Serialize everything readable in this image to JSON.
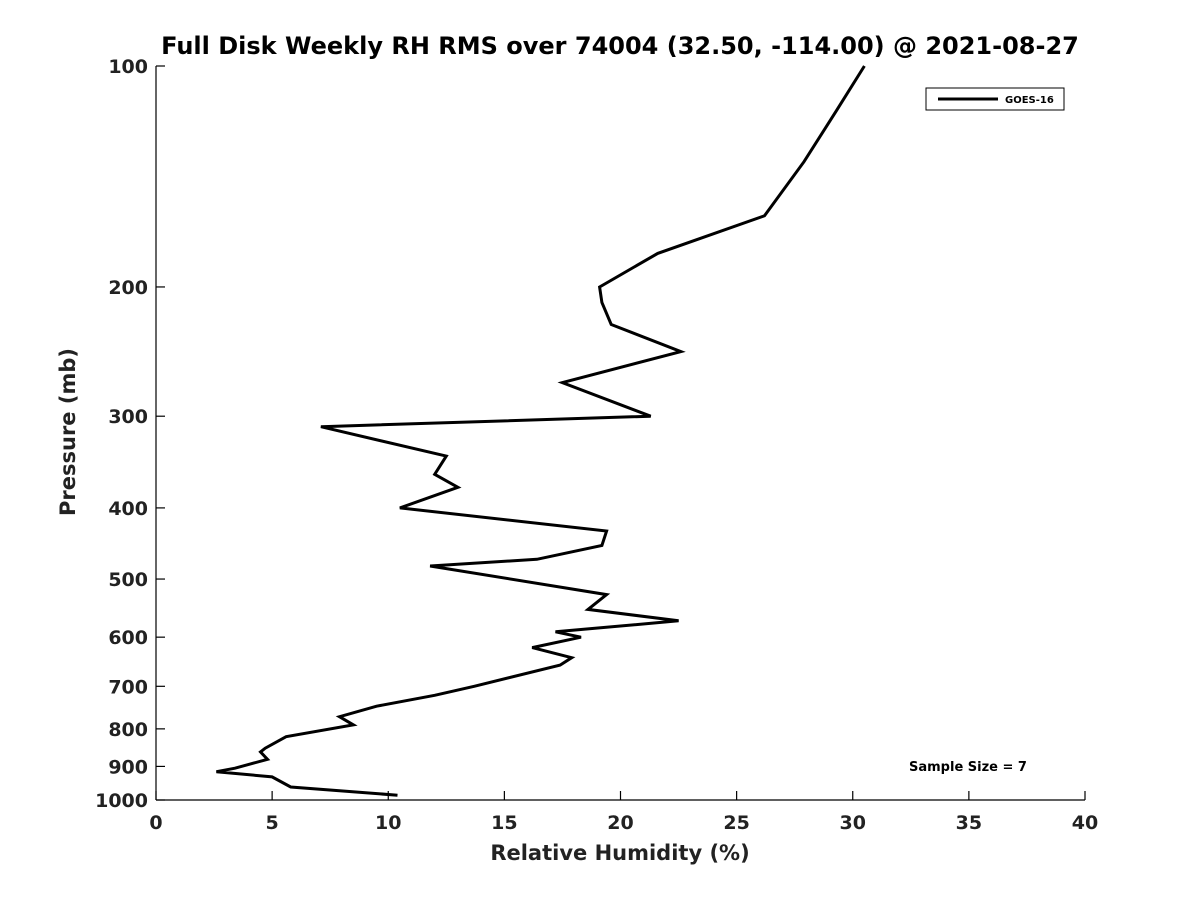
{
  "chart_data": {
    "type": "line",
    "title": "Full Disk Weekly RH RMS over 74004 (32.50, -114.00) @ 2021-08-27",
    "xlabel": "Relative Humidity (%)",
    "ylabel": "Pressure (mb)",
    "xlim": [
      0,
      40
    ],
    "ylim": [
      100,
      1000
    ],
    "y_scale": "log",
    "y_reversed": true,
    "x_ticks": [
      "0",
      "5",
      "10",
      "15",
      "20",
      "25",
      "30",
      "35",
      "40"
    ],
    "y_ticks": [
      "100",
      "200",
      "300",
      "400",
      "500",
      "600",
      "700",
      "800",
      "900",
      "1000"
    ],
    "grid": false,
    "legend_position": "top-right",
    "series": [
      {
        "name": "GOES-16",
        "color": "#000000",
        "points": [
          [
            30.5,
            100
          ],
          [
            29.3,
            115
          ],
          [
            27.9,
            135
          ],
          [
            26.2,
            160
          ],
          [
            21.6,
            180
          ],
          [
            19.1,
            200
          ],
          [
            19.2,
            210
          ],
          [
            19.6,
            225
          ],
          [
            22.6,
            245
          ],
          [
            17.5,
            270
          ],
          [
            21.3,
            300
          ],
          [
            7.1,
            310
          ],
          [
            12.5,
            340
          ],
          [
            12.0,
            360
          ],
          [
            13.0,
            375
          ],
          [
            10.5,
            400
          ],
          [
            19.4,
            430
          ],
          [
            19.2,
            450
          ],
          [
            16.4,
            470
          ],
          [
            11.8,
            480
          ],
          [
            19.4,
            525
          ],
          [
            18.6,
            550
          ],
          [
            22.5,
            570
          ],
          [
            17.2,
            590
          ],
          [
            18.3,
            600
          ],
          [
            16.2,
            620
          ],
          [
            17.9,
            640
          ],
          [
            17.4,
            655
          ],
          [
            13.7,
            700
          ],
          [
            12.0,
            720
          ],
          [
            9.5,
            745
          ],
          [
            7.9,
            770
          ],
          [
            8.5,
            790
          ],
          [
            5.6,
            820
          ],
          [
            4.7,
            850
          ],
          [
            4.5,
            860
          ],
          [
            4.8,
            880
          ],
          [
            3.4,
            905
          ],
          [
            2.6,
            915
          ],
          [
            5.0,
            930
          ],
          [
            5.8,
            960
          ],
          [
            10.4,
            985
          ]
        ]
      }
    ],
    "annotation": "Sample Size = 7"
  }
}
